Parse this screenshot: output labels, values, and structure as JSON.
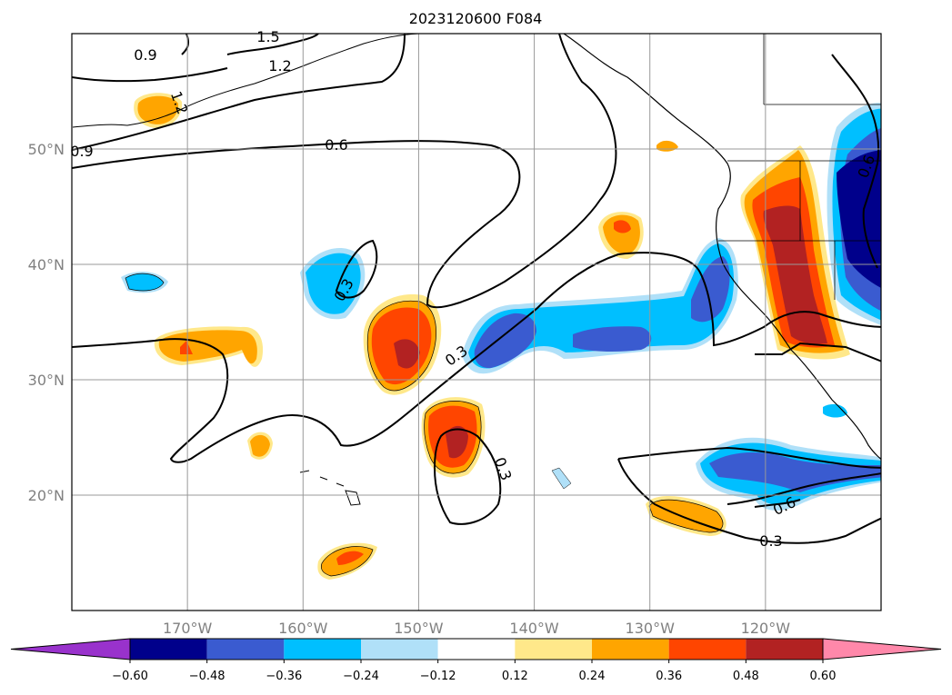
{
  "title": "2023120600 F084",
  "map": {
    "lon_range": [
      -180,
      -110
    ],
    "lat_range": [
      10,
      60
    ],
    "lon_ticks": [
      {
        "value": -170,
        "label": "170°W"
      },
      {
        "value": -160,
        "label": "160°W"
      },
      {
        "value": -150,
        "label": "150°W"
      },
      {
        "value": -140,
        "label": "140°W"
      },
      {
        "value": -130,
        "label": "130°W"
      },
      {
        "value": -120,
        "label": "120°W"
      }
    ],
    "lat_ticks": [
      {
        "value": 20,
        "label": "20°N"
      },
      {
        "value": 30,
        "label": "30°N"
      },
      {
        "value": 40,
        "label": "40°N"
      },
      {
        "value": 50,
        "label": "50°N"
      }
    ],
    "grid": true
  },
  "colorbar": {
    "levels": [
      "−0.60",
      "−0.48",
      "−0.36",
      "−0.24",
      "−0.12",
      "0.12",
      "0.24",
      "0.36",
      "0.48",
      "0.60"
    ],
    "colors": [
      "#9932cc",
      "#00008b",
      "#3a5bd0",
      "#00bfff",
      "#b0e0f8",
      "#ffffff",
      "#ffe88a",
      "#ffa500",
      "#ff4500",
      "#b22222",
      "#ff88aa"
    ],
    "extend": "both"
  },
  "contour_labels": [
    "0.9",
    "1.2",
    "1.5",
    "1.2",
    "0.9",
    "0.6",
    "0.3",
    "0.3",
    "0.3",
    "0.6",
    "0.3",
    "0.6"
  ],
  "chart_data": {
    "type": "map-contour",
    "title": "2023120600 F084",
    "xlim": [
      -180,
      -110
    ],
    "ylim": [
      10,
      60
    ],
    "contour_levels": [
      0.3,
      0.6,
      0.9,
      1.2,
      1.5
    ],
    "fill_levels": [
      -0.6,
      -0.48,
      -0.36,
      -0.24,
      -0.12,
      0.12,
      0.24,
      0.36,
      0.48,
      0.6
    ]
  }
}
